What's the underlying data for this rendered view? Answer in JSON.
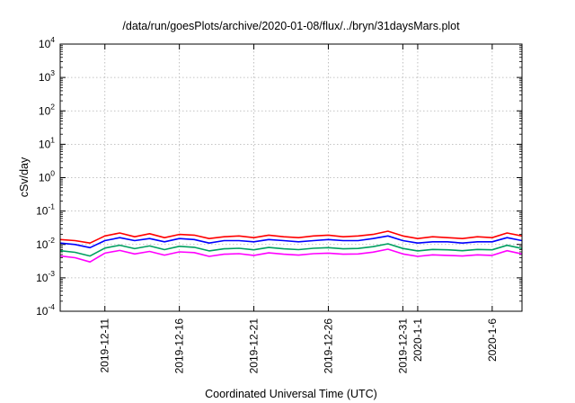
{
  "chart_data": {
    "type": "line",
    "title": "/data/run/goesPlots/archive/2020-01-08/flux/../bryn/31daysMars.plot",
    "xlabel": "Coordinated Universal Time (UTC)",
    "ylabel": "cSv/day",
    "x_start": "2019-12-08",
    "x_end": "2020-01-08",
    "x_ticks": [
      {
        "date": "2019-12-11",
        "label": "2019-12-11"
      },
      {
        "date": "2019-12-16",
        "label": "2019-12-16"
      },
      {
        "date": "2019-12-21",
        "label": "2019-12-21"
      },
      {
        "date": "2019-12-26",
        "label": "2019-12-26"
      },
      {
        "date": "2019-12-31",
        "label": "2019-12-31"
      },
      {
        "date": "2020-01-01",
        "label": "2020-1-1"
      },
      {
        "date": "2020-01-06",
        "label": "2020-1-6"
      }
    ],
    "y_scale": "log",
    "ylim": [
      0.0001,
      10000
    ],
    "y_ticks": [
      {
        "base": "10",
        "exp": "-4",
        "value": 0.0001
      },
      {
        "base": "10",
        "exp": "-3",
        "value": 0.001
      },
      {
        "base": "10",
        "exp": "-2",
        "value": 0.01
      },
      {
        "base": "10",
        "exp": "-1",
        "value": 0.1
      },
      {
        "base": "10",
        "exp": "0",
        "value": 1
      },
      {
        "base": "10",
        "exp": "1",
        "value": 10
      },
      {
        "base": "10",
        "exp": "2",
        "value": 100
      },
      {
        "base": "10",
        "exp": "3",
        "value": 1000
      },
      {
        "base": "10",
        "exp": "4",
        "value": 10000
      }
    ],
    "grid": true,
    "series": [
      {
        "color": "#ff0000",
        "x": [
          "2019-12-08",
          "2019-12-09",
          "2019-12-10",
          "2019-12-11",
          "2019-12-12",
          "2019-12-13",
          "2019-12-14",
          "2019-12-15",
          "2019-12-16",
          "2019-12-17",
          "2019-12-18",
          "2019-12-19",
          "2019-12-20",
          "2019-12-21",
          "2019-12-22",
          "2019-12-23",
          "2019-12-24",
          "2019-12-25",
          "2019-12-26",
          "2019-12-27",
          "2019-12-28",
          "2019-12-29",
          "2019-12-30",
          "2019-12-31",
          "2020-01-01",
          "2020-01-02",
          "2020-01-03",
          "2020-01-04",
          "2020-01-05",
          "2020-01-06",
          "2020-01-07",
          "2020-01-08"
        ],
        "values": [
          0.014,
          0.013,
          0.011,
          0.018,
          0.022,
          0.017,
          0.021,
          0.016,
          0.02,
          0.019,
          0.015,
          0.017,
          0.018,
          0.016,
          0.019,
          0.017,
          0.016,
          0.018,
          0.019,
          0.017,
          0.018,
          0.02,
          0.025,
          0.018,
          0.015,
          0.017,
          0.016,
          0.015,
          0.017,
          0.016,
          0.022,
          0.018
        ]
      },
      {
        "color": "#0000ff",
        "x": [
          "2019-12-08",
          "2019-12-09",
          "2019-12-10",
          "2019-12-11",
          "2019-12-12",
          "2019-12-13",
          "2019-12-14",
          "2019-12-15",
          "2019-12-16",
          "2019-12-17",
          "2019-12-18",
          "2019-12-19",
          "2019-12-20",
          "2019-12-21",
          "2019-12-22",
          "2019-12-23",
          "2019-12-24",
          "2019-12-25",
          "2019-12-26",
          "2019-12-27",
          "2019-12-28",
          "2019-12-29",
          "2019-12-30",
          "2019-12-31",
          "2020-01-01",
          "2020-01-02",
          "2020-01-03",
          "2020-01-04",
          "2020-01-05",
          "2020-01-06",
          "2020-01-07",
          "2020-01-08"
        ],
        "values": [
          0.011,
          0.01,
          0.008,
          0.013,
          0.016,
          0.013,
          0.015,
          0.012,
          0.015,
          0.014,
          0.011,
          0.013,
          0.013,
          0.012,
          0.014,
          0.013,
          0.012,
          0.013,
          0.014,
          0.013,
          0.013,
          0.015,
          0.018,
          0.013,
          0.011,
          0.012,
          0.012,
          0.011,
          0.012,
          0.012,
          0.016,
          0.013
        ]
      },
      {
        "color": "#00a060",
        "x": [
          "2019-12-08",
          "2019-12-09",
          "2019-12-10",
          "2019-12-11",
          "2019-12-12",
          "2019-12-13",
          "2019-12-14",
          "2019-12-15",
          "2019-12-16",
          "2019-12-17",
          "2019-12-18",
          "2019-12-19",
          "2019-12-20",
          "2019-12-21",
          "2019-12-22",
          "2019-12-23",
          "2019-12-24",
          "2019-12-25",
          "2019-12-26",
          "2019-12-27",
          "2019-12-28",
          "2019-12-29",
          "2019-12-30",
          "2019-12-31",
          "2020-01-01",
          "2020-01-02",
          "2020-01-03",
          "2020-01-04",
          "2020-01-05",
          "2020-01-06",
          "2020-01-07",
          "2020-01-08"
        ],
        "values": [
          0.0065,
          0.0058,
          0.0045,
          0.0078,
          0.0095,
          0.0075,
          0.009,
          0.007,
          0.0088,
          0.0082,
          0.0064,
          0.0074,
          0.0077,
          0.0069,
          0.0081,
          0.0074,
          0.007,
          0.0077,
          0.008,
          0.0074,
          0.0076,
          0.0086,
          0.0105,
          0.0076,
          0.0064,
          0.0071,
          0.0069,
          0.0065,
          0.0071,
          0.0069,
          0.0094,
          0.0076
        ]
      },
      {
        "color": "#ff00ff",
        "x": [
          "2019-12-08",
          "2019-12-09",
          "2019-12-10",
          "2019-12-11",
          "2019-12-12",
          "2019-12-13",
          "2019-12-14",
          "2019-12-15",
          "2019-12-16",
          "2019-12-17",
          "2019-12-18",
          "2019-12-19",
          "2019-12-20",
          "2019-12-21",
          "2019-12-22",
          "2019-12-23",
          "2019-12-24",
          "2019-12-25",
          "2019-12-26",
          "2019-12-27",
          "2019-12-28",
          "2019-12-29",
          "2019-12-30",
          "2019-12-31",
          "2020-01-01",
          "2020-01-02",
          "2020-01-03",
          "2020-01-04",
          "2020-01-05",
          "2020-01-06",
          "2020-01-07",
          "2020-01-08"
        ],
        "values": [
          0.0045,
          0.004,
          0.003,
          0.0055,
          0.0066,
          0.0052,
          0.0062,
          0.0048,
          0.006,
          0.0057,
          0.0044,
          0.0051,
          0.0053,
          0.0047,
          0.0056,
          0.0051,
          0.0048,
          0.0053,
          0.0055,
          0.0051,
          0.0052,
          0.0059,
          0.0072,
          0.0052,
          0.0044,
          0.0049,
          0.0047,
          0.0045,
          0.0049,
          0.0047,
          0.0065,
          0.0052
        ]
      }
    ]
  }
}
